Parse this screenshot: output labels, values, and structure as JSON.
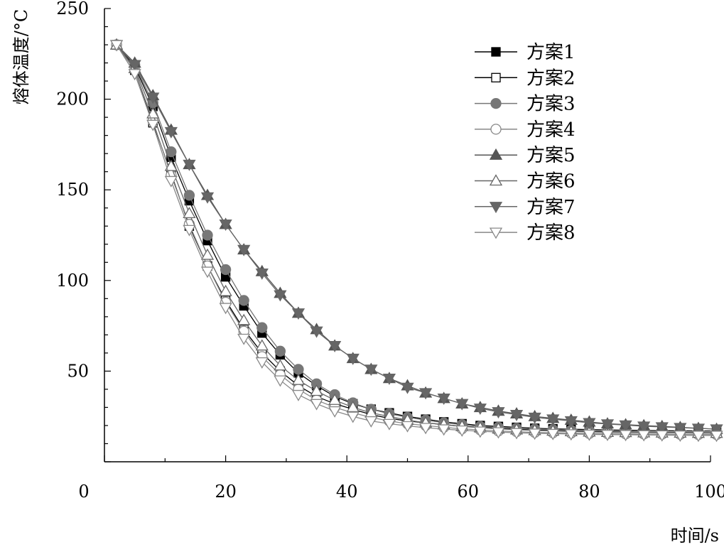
{
  "chart_data": {
    "type": "line",
    "xlabel": "时间/s",
    "ylabel": "熔体温度/°C",
    "xlim": [
      0,
      100
    ],
    "ylim": [
      0,
      250
    ],
    "x_ticks": [
      0,
      20,
      40,
      60,
      80,
      100
    ],
    "y_ticks": [
      50,
      100,
      150,
      200,
      250
    ],
    "legend_position": "top-right",
    "grid": false,
    "x": [
      2,
      5,
      8,
      11,
      14,
      17,
      20,
      23,
      26,
      29,
      32,
      35,
      38,
      41,
      44,
      47,
      50,
      53,
      56,
      59,
      62,
      65,
      68,
      71,
      74,
      77,
      80,
      83,
      86,
      89,
      92,
      95,
      98,
      101
    ],
    "series": [
      {
        "name": "方案1",
        "marker": "square",
        "filled": true,
        "color": "#000000",
        "values": [
          230,
          218,
          196,
          168,
          144,
          122,
          102,
          86,
          71,
          59,
          49,
          42,
          36,
          32,
          29,
          27,
          25,
          23.5,
          22,
          21,
          20,
          19.5,
          19,
          18.5,
          18.2,
          18,
          17.8,
          17.6,
          17.4,
          17.3,
          17.2,
          17.1,
          17,
          17
        ]
      },
      {
        "name": "方案2",
        "marker": "square",
        "filled": false,
        "color": "#000000",
        "values": [
          230,
          216,
          187,
          159,
          130,
          108,
          89,
          73,
          60,
          50,
          42,
          36,
          32,
          29,
          26,
          24,
          22.5,
          21.5,
          20.5,
          19.5,
          19,
          18.5,
          18,
          17.6,
          17.2,
          17,
          16.8,
          16.6,
          16.4,
          16.3,
          16.2,
          16.1,
          16,
          16
        ]
      },
      {
        "name": "方案3",
        "marker": "circle",
        "filled": true,
        "color": "#777777",
        "values": [
          230,
          219,
          198,
          171,
          147,
          125,
          106,
          89,
          74,
          61,
          51,
          43,
          37,
          32.5,
          29,
          26.5,
          24.5,
          23,
          21.5,
          20.5,
          19.5,
          19,
          18.5,
          18,
          17.7,
          17.4,
          17.2,
          17,
          16.8,
          16.6,
          16.5,
          16.4,
          16.3,
          16.2
        ]
      },
      {
        "name": "方案4",
        "marker": "circle",
        "filled": false,
        "color": "#888888",
        "values": [
          230,
          216,
          188,
          158,
          131,
          108,
          88,
          72,
          58,
          48,
          40,
          34,
          30,
          27,
          24.5,
          22.5,
          21,
          20,
          19,
          18.2,
          17.6,
          17,
          16.6,
          16.2,
          16,
          15.8,
          15.6,
          15.5,
          15.4,
          15.3,
          15.2,
          15.1,
          15,
          15
        ]
      },
      {
        "name": "方案5",
        "marker": "triangle-up",
        "filled": true,
        "color": "#555555",
        "values": [
          230,
          220,
          202,
          183,
          164,
          147,
          131,
          117,
          105,
          93,
          82,
          73,
          64,
          57,
          51,
          46,
          42,
          38,
          35,
          32,
          30,
          28,
          26.5,
          25,
          24,
          23,
          22,
          21,
          20.5,
          20,
          19.5,
          19,
          18.5,
          18
        ]
      },
      {
        "name": "方案6",
        "marker": "triangle-up",
        "filled": false,
        "color": "#666666",
        "values": [
          230,
          217,
          192,
          163,
          137,
          114,
          94,
          78,
          64,
          53,
          45,
          39,
          34,
          30,
          27,
          25,
          23,
          21.5,
          20.5,
          19.5,
          18.8,
          18.2,
          17.7,
          17.3,
          17,
          16.7,
          16.5,
          16.3,
          16.2,
          16.1,
          16,
          15.9,
          15.8,
          15.8
        ]
      },
      {
        "name": "方案7",
        "marker": "triangle-down",
        "filled": true,
        "color": "#666666",
        "values": [
          230,
          219,
          201,
          182,
          164,
          146,
          131,
          117,
          104,
          92,
          82,
          72,
          64,
          57,
          51,
          46,
          41,
          38,
          35,
          32,
          29.5,
          27.5,
          26,
          24.5,
          23.5,
          22.5,
          21.5,
          20.8,
          20.2,
          19.6,
          19.2,
          18.8,
          18.4,
          18
        ]
      },
      {
        "name": "方案8",
        "marker": "triangle-down",
        "filled": false,
        "color": "#888888",
        "values": [
          230,
          214,
          186,
          155,
          128,
          105,
          85,
          68,
          55,
          45,
          37,
          32,
          28,
          25,
          22.5,
          21,
          19.8,
          18.8,
          18,
          17.4,
          16.8,
          16.4,
          16,
          15.7,
          15.5,
          15.3,
          15.1,
          15,
          14.9,
          14.8,
          14.7,
          14.6,
          14.5,
          14.5
        ]
      }
    ]
  }
}
